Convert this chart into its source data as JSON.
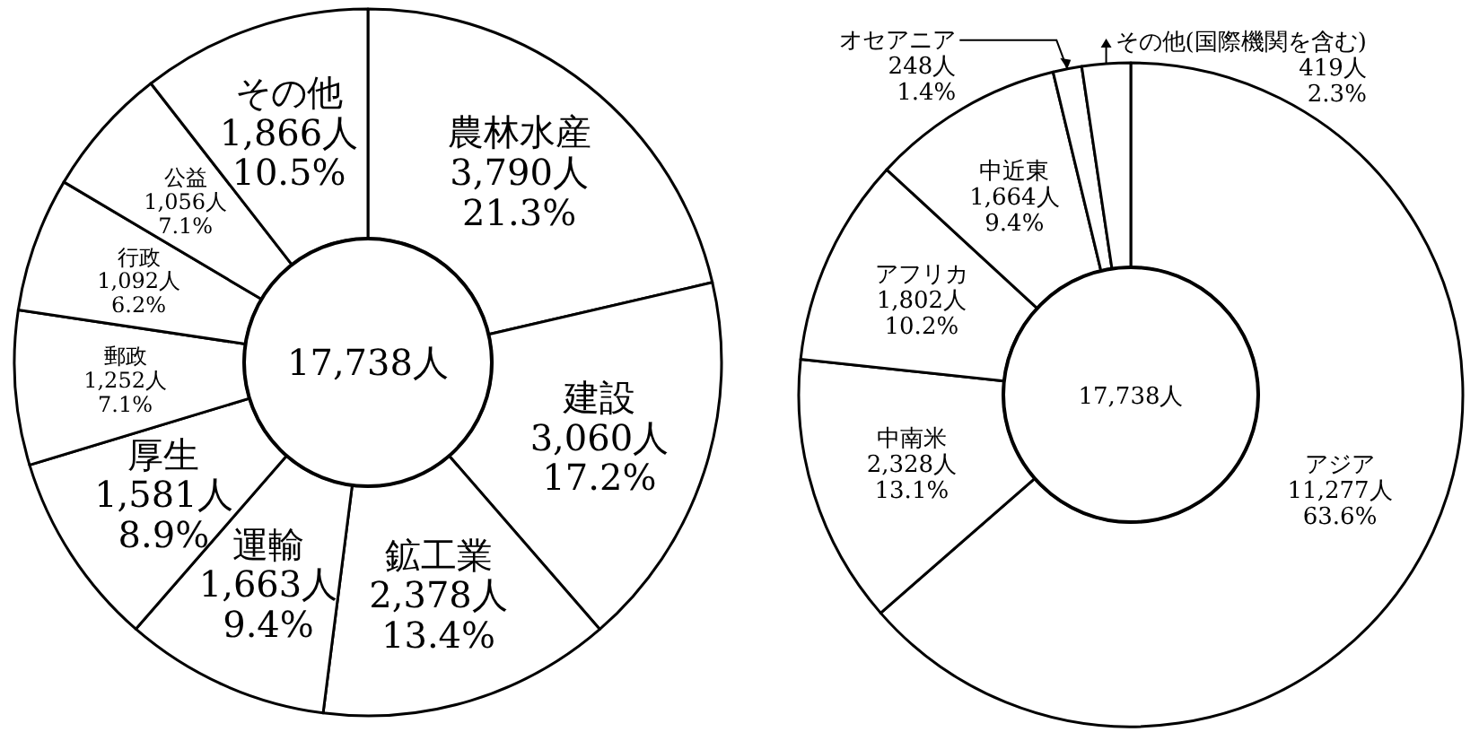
{
  "chart_data": [
    {
      "type": "donut",
      "categories": [
        "農林水産",
        "建設",
        "鉱工業",
        "運輸",
        "厚生",
        "郵政",
        "行政",
        "公益",
        "その他"
      ],
      "values": [
        3790,
        3060,
        2378,
        1663,
        1581,
        1252,
        1092,
        1056,
        1866
      ],
      "colors": [
        "#ffffff",
        "#ffffff",
        "#ffffff",
        "#ffffff",
        "#ffffff",
        "#ffffff",
        "#ffffff",
        "#ffffff",
        "#ffffff"
      ],
      "value_labels": [
        "3,790人\n21.3%",
        "3,060人\n17.2%",
        "2,378人\n13.4%",
        "1,663人\n9.4%",
        "1,581人\n8.9%",
        "1,252人\n7.1%",
        "1,092人\n6.2%",
        "1,056人\n7.1%",
        "1,866人\n10.5%"
      ],
      "annotations": [
        "17,738人"
      ]
    },
    {
      "type": "donut",
      "categories": [
        "アジア",
        "中南米",
        "アフリカ",
        "中近東",
        "オセアニア",
        "その他(国際機関を含む)"
      ],
      "values": [
        11277,
        2328,
        1802,
        1664,
        248,
        419
      ],
      "colors": [
        "#ffffff",
        "#ffffff",
        "#ffffff",
        "#ffffff",
        "#ffffff",
        "#ffffff"
      ],
      "value_labels": [
        "11,277人\n63.6%",
        "2,328人\n13.1%",
        "1,802人\n10.2%",
        "1,664人\n9.4%",
        "248人\n1.4%",
        "419人\n2.3%"
      ],
      "annotations": [
        "17,738人"
      ]
    }
  ]
}
